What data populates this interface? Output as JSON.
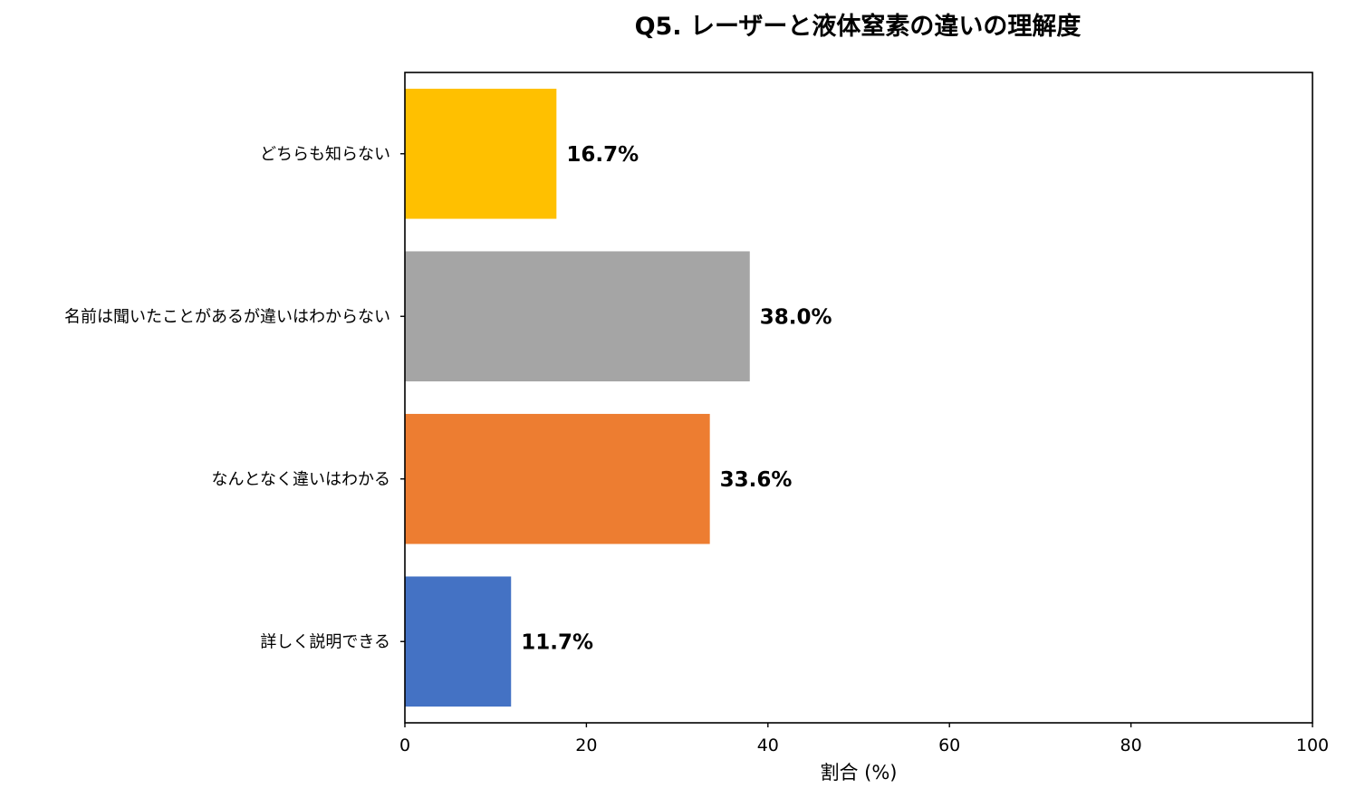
{
  "chart_data": {
    "type": "bar",
    "orientation": "horizontal",
    "title": "Q5. レーザーと液体窒素の違いの理解度",
    "xlabel": "割合 (%)",
    "ylabel": "",
    "xlim": [
      0,
      100
    ],
    "xticks": [
      0,
      20,
      40,
      60,
      80,
      100
    ],
    "grid": false,
    "categories": [
      "詳しく説明できる",
      "なんとなく違いはわかる",
      "名前は聞いたことがあるが違いはわからない",
      "どちらも知らない"
    ],
    "values": [
      11.7,
      33.6,
      38.0,
      16.7
    ],
    "data_labels": [
      "11.7%",
      "33.6%",
      "38.0%",
      "16.7%"
    ],
    "colors": [
      "#4472C4",
      "#ED7D31",
      "#A5A5A5",
      "#FFC000"
    ]
  }
}
